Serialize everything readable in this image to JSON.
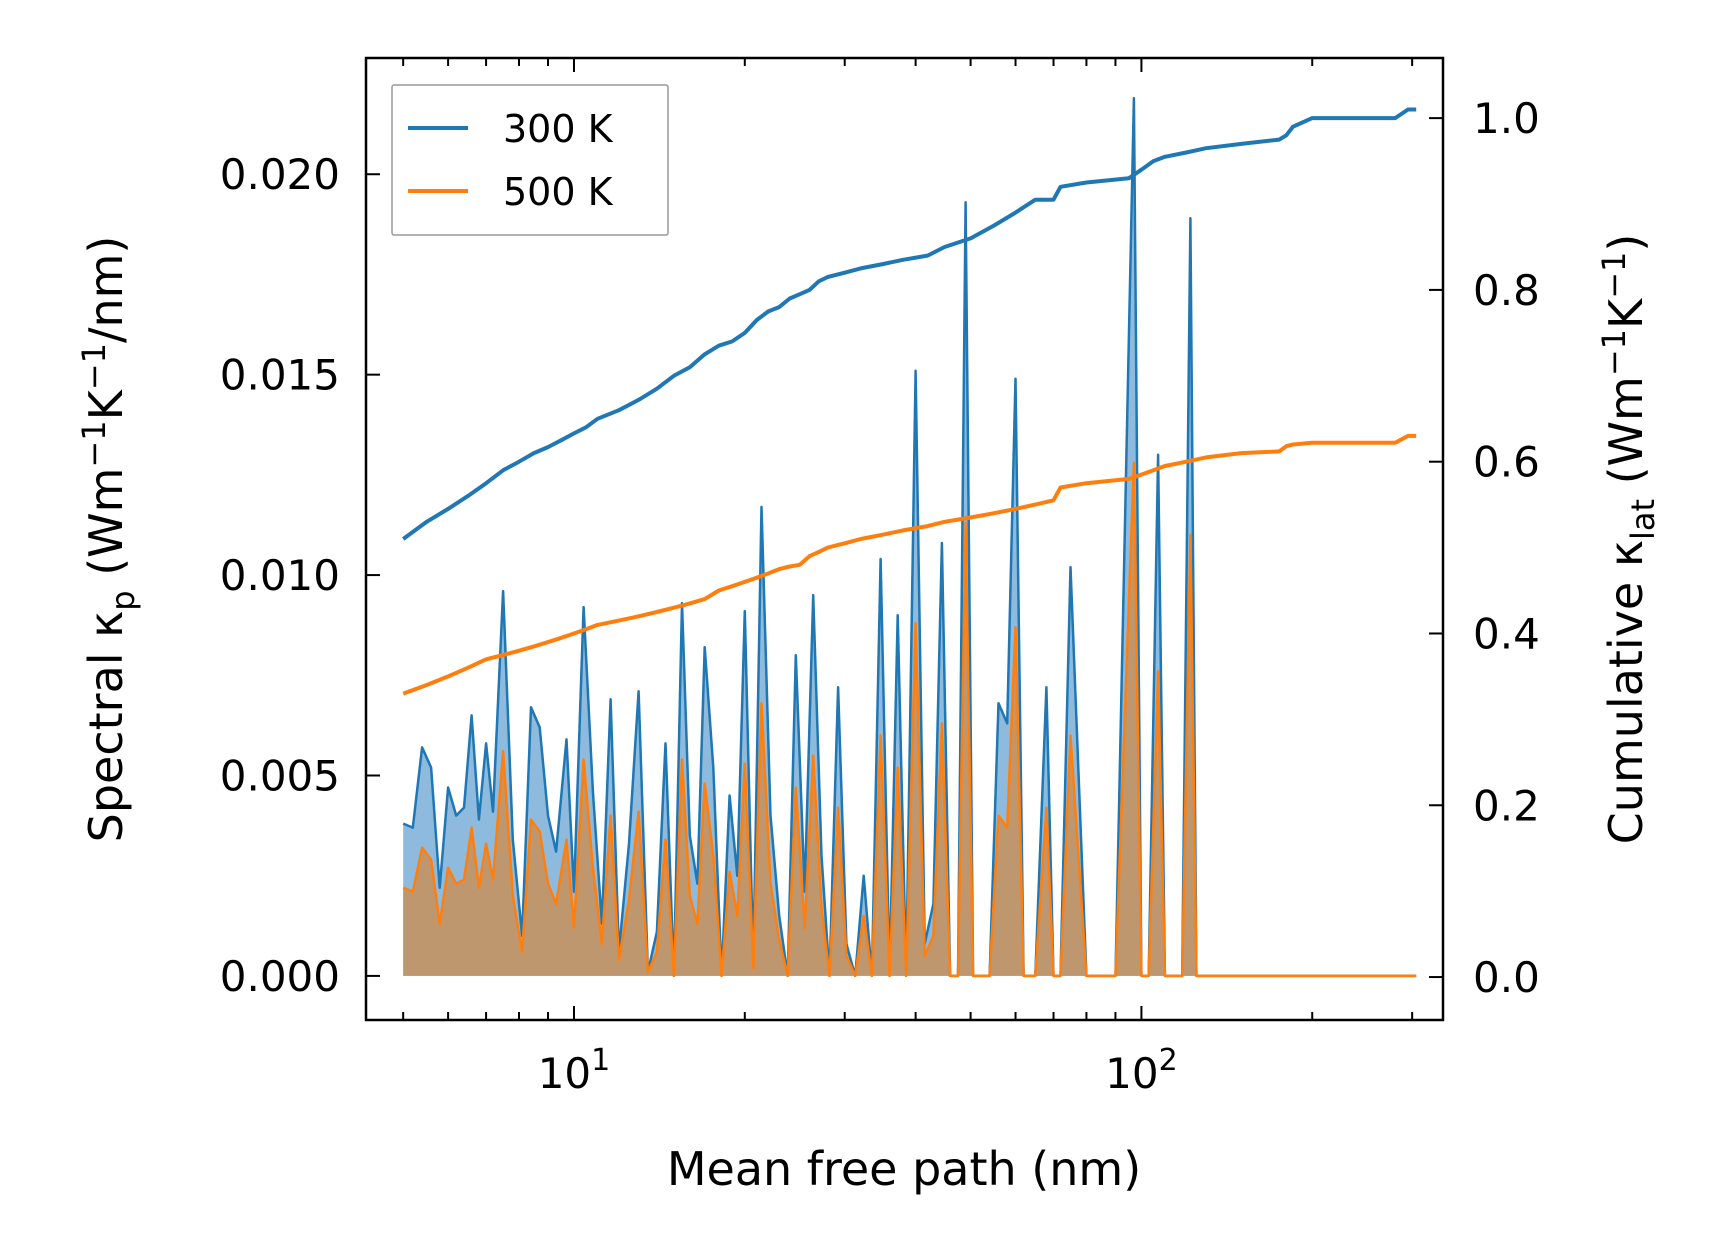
{
  "chart_data": {
    "type": "line",
    "x_scale": "log",
    "xlabel": "Mean free path (nm)",
    "ylabel_left": {
      "text": "Spectral κ",
      "sub": "p",
      "unit_pre": " (Wm",
      "sup1": "−1",
      "unit_mid": "K",
      "sup2": "−1",
      "unit_post": "/nm)"
    },
    "ylabel_right": {
      "text": "Cumulative κ",
      "sub": "lat",
      "unit_pre": " (Wm",
      "sup1": "−1",
      "unit_mid": "K",
      "sup2": "−1",
      "unit_post": ")"
    },
    "xlim": [
      4.3,
      340
    ],
    "ylim_left": [
      -0.0011,
      0.0229
    ],
    "ylim_right": [
      -0.05,
      1.07
    ],
    "x_ticks": [
      {
        "value": 10,
        "base": "10",
        "exp": "1"
      },
      {
        "value": 100,
        "base": "10",
        "exp": "2"
      }
    ],
    "y_ticks_left": [
      "0.000",
      "0.005",
      "0.010",
      "0.015",
      "0.020"
    ],
    "y_ticks_left_values": [
      0.0,
      0.005,
      0.01,
      0.015,
      0.02
    ],
    "y_ticks_right": [
      "0.0",
      "0.2",
      "0.4",
      "0.6",
      "0.8",
      "1.0"
    ],
    "y_ticks_right_values": [
      0.0,
      0.2,
      0.4,
      0.6,
      0.8,
      1.0
    ],
    "legend": {
      "position": "top-left",
      "entries": [
        {
          "label": "300 K",
          "color": "#1f77b4"
        },
        {
          "label": "500 K",
          "color": "#ff7f0e"
        }
      ]
    },
    "colors": {
      "blue": "#1f77b4",
      "orange": "#ff7f0e",
      "blue_fill": "#7aaed7",
      "orange_fill": "#c8905a"
    },
    "series": [
      {
        "name": "300 K spectral",
        "axis": "left",
        "kind": "filled-line",
        "x": [
          5.0,
          5.2,
          5.4,
          5.6,
          5.8,
          6.0,
          6.2,
          6.4,
          6.6,
          6.8,
          7.0,
          7.2,
          7.5,
          7.8,
          8.1,
          8.4,
          8.7,
          9.0,
          9.3,
          9.7,
          10.0,
          10.4,
          10.8,
          11.2,
          11.6,
          12.0,
          12.5,
          13.0,
          13.5,
          14.0,
          14.5,
          15.0,
          15.5,
          16.0,
          16.5,
          17.0,
          17.6,
          18.2,
          18.8,
          19.4,
          20.0,
          20.7,
          21.4,
          22.2,
          23.0,
          23.8,
          24.6,
          25.5,
          26.4,
          27.3,
          28.2,
          29.2,
          30.2,
          31.3,
          32.4,
          33.5,
          34.7,
          36.0,
          37.2,
          38.5,
          40.0,
          41.5,
          43.0,
          44.5,
          46.0,
          47.5,
          49.0,
          50.5,
          52.0,
          54.0,
          56.0,
          58.0,
          60.0,
          62.0,
          65.0,
          68.0,
          70.0,
          72.0,
          75.0,
          80.0,
          90.0,
          97.0,
          100.0,
          103.0,
          107.0,
          110.0,
          113.0,
          118.0,
          122.0,
          125.0,
          130.0,
          140.0,
          147.0,
          150.0,
          153.0,
          160.0,
          170.0,
          175.0,
          178.0,
          181.0,
          185.0,
          188.0,
          192.0,
          200.0,
          250.0,
          290.0,
          295.0,
          300.0,
          305.0
        ],
        "y": [
          0.0038,
          0.0037,
          0.0057,
          0.0052,
          0.0022,
          0.0047,
          0.004,
          0.0042,
          0.0065,
          0.0039,
          0.0058,
          0.0041,
          0.0096,
          0.0034,
          0.001,
          0.0067,
          0.0062,
          0.004,
          0.0031,
          0.0059,
          0.0021,
          0.0092,
          0.0046,
          0.0013,
          0.0069,
          0.0006,
          0.0033,
          0.0071,
          0.0001,
          0.0011,
          0.0058,
          0.0,
          0.0093,
          0.0035,
          0.0023,
          0.0082,
          0.0052,
          0.0,
          0.0045,
          0.0025,
          0.0091,
          0.0003,
          0.0117,
          0.004,
          0.0015,
          0.0,
          0.008,
          0.0021,
          0.0095,
          0.003,
          0.0,
          0.0072,
          0.0008,
          0.0,
          0.0025,
          0.0,
          0.0104,
          0.0,
          0.009,
          0.0,
          0.0151,
          0.0008,
          0.0018,
          0.0108,
          0.0,
          0.0,
          0.0193,
          0.0,
          0.0,
          0.0,
          0.0068,
          0.0063,
          0.0149,
          0.0,
          0.0,
          0.0072,
          0.0,
          0.0,
          0.0102,
          0.0,
          0.0,
          0.0219,
          0.0,
          0.0,
          0.013,
          0.0,
          0.0,
          0.0,
          0.0189,
          0.0,
          0.0,
          0.0,
          0.0,
          0.0,
          0.0,
          0.0,
          0.0,
          0.0,
          0.0,
          0.0,
          0.0,
          0.0,
          0.0,
          0.0,
          0.0,
          0.0,
          0.0,
          0.0,
          0.0
        ]
      },
      {
        "name": "500 K spectral",
        "axis": "left",
        "kind": "filled-line",
        "x": [
          5.0,
          5.2,
          5.4,
          5.6,
          5.8,
          6.0,
          6.2,
          6.4,
          6.6,
          6.8,
          7.0,
          7.2,
          7.5,
          7.8,
          8.1,
          8.4,
          8.7,
          9.0,
          9.3,
          9.7,
          10.0,
          10.4,
          10.8,
          11.2,
          11.6,
          12.0,
          12.5,
          13.0,
          13.5,
          14.0,
          14.5,
          15.0,
          15.5,
          16.0,
          16.5,
          17.0,
          17.6,
          18.2,
          18.8,
          19.4,
          20.0,
          20.7,
          21.4,
          22.2,
          23.0,
          23.8,
          24.6,
          25.5,
          26.4,
          27.3,
          28.2,
          29.2,
          30.2,
          31.3,
          32.4,
          33.5,
          34.7,
          36.0,
          37.2,
          38.5,
          40.0,
          41.5,
          43.0,
          44.5,
          46.0,
          47.5,
          49.0,
          50.5,
          52.0,
          54.0,
          56.0,
          58.0,
          60.0,
          62.0,
          65.0,
          68.0,
          70.0,
          72.0,
          75.0,
          80.0,
          90.0,
          97.0,
          100.0,
          103.0,
          107.0,
          110.0,
          113.0,
          118.0,
          122.0,
          125.0,
          130.0,
          140.0,
          147.0,
          150.0,
          153.0,
          160.0,
          170.0,
          175.0,
          178.0,
          181.0,
          185.0,
          188.0,
          192.0,
          200.0,
          250.0,
          290.0,
          295.0,
          300.0,
          305.0
        ],
        "y": [
          0.0022,
          0.0021,
          0.0032,
          0.0029,
          0.0013,
          0.0027,
          0.0023,
          0.0024,
          0.0037,
          0.0022,
          0.0033,
          0.0024,
          0.0056,
          0.002,
          0.0006,
          0.0039,
          0.0036,
          0.0023,
          0.0018,
          0.0034,
          0.0012,
          0.0054,
          0.0027,
          0.0008,
          0.004,
          0.0004,
          0.0019,
          0.0041,
          0.0001,
          0.0006,
          0.0034,
          0.0,
          0.0054,
          0.002,
          0.0013,
          0.0048,
          0.003,
          0.0,
          0.0026,
          0.0015,
          0.0053,
          0.0002,
          0.0068,
          0.0023,
          0.0009,
          0.0,
          0.0047,
          0.0012,
          0.0055,
          0.0017,
          0.0,
          0.0042,
          0.0005,
          0.0,
          0.0015,
          0.0,
          0.006,
          0.0,
          0.0052,
          0.0,
          0.0088,
          0.0005,
          0.001,
          0.0063,
          0.0,
          0.0,
          0.0113,
          0.0,
          0.0,
          0.0,
          0.004,
          0.0037,
          0.0087,
          0.0,
          0.0,
          0.0042,
          0.0,
          0.0,
          0.006,
          0.0,
          0.0,
          0.0128,
          0.0,
          0.0,
          0.0076,
          0.0,
          0.0,
          0.0,
          0.011,
          0.0,
          0.0,
          0.0,
          0.0,
          0.0,
          0.0,
          0.0,
          0.0,
          0.0,
          0.0,
          0.0,
          0.0,
          0.0,
          0.0,
          0.0,
          0.0,
          0.0,
          0.0,
          0.0,
          0.0
        ]
      },
      {
        "name": "300 K",
        "axis": "right",
        "kind": "line",
        "x": [
          5.0,
          5.5,
          6.0,
          6.5,
          7.0,
          7.5,
          8.0,
          8.5,
          9.0,
          9.5,
          10.0,
          10.5,
          11.0,
          12.0,
          13.0,
          14.0,
          15.0,
          16.0,
          17.0,
          18.0,
          19.0,
          20.0,
          21.0,
          22.0,
          23.0,
          24.0,
          25.0,
          26.0,
          27.0,
          28.0,
          30.0,
          32.0,
          35.0,
          38.0,
          42.0,
          45.0,
          50.0,
          55.0,
          60.0,
          65.0,
          70.0,
          72.0,
          80.0,
          95.0,
          100.0,
          105.0,
          110.0,
          120.0,
          130.0,
          150.0,
          175.0,
          180.0,
          185.0,
          200.0,
          280.0,
          295.0,
          305.0
        ],
        "y": [
          0.51,
          0.53,
          0.545,
          0.56,
          0.575,
          0.59,
          0.6,
          0.61,
          0.617,
          0.625,
          0.633,
          0.64,
          0.65,
          0.66,
          0.672,
          0.685,
          0.7,
          0.71,
          0.725,
          0.735,
          0.74,
          0.75,
          0.765,
          0.775,
          0.78,
          0.79,
          0.795,
          0.8,
          0.81,
          0.815,
          0.82,
          0.825,
          0.83,
          0.835,
          0.84,
          0.85,
          0.86,
          0.875,
          0.89,
          0.905,
          0.905,
          0.92,
          0.925,
          0.93,
          0.94,
          0.95,
          0.955,
          0.96,
          0.965,
          0.97,
          0.975,
          0.98,
          0.99,
          1.0,
          1.0,
          1.01,
          1.01
        ]
      },
      {
        "name": "500 K",
        "axis": "right",
        "kind": "line",
        "x": [
          5.0,
          5.5,
          6.0,
          6.5,
          7.0,
          7.5,
          8.0,
          8.5,
          9.0,
          9.5,
          10.0,
          10.5,
          11.0,
          12.0,
          13.0,
          14.0,
          15.0,
          16.0,
          17.0,
          18.0,
          19.0,
          20.0,
          21.0,
          22.0,
          23.0,
          24.0,
          25.0,
          26.0,
          27.0,
          28.0,
          30.0,
          32.0,
          35.0,
          38.0,
          42.0,
          45.0,
          50.0,
          55.0,
          60.0,
          65.0,
          70.0,
          72.0,
          80.0,
          95.0,
          100.0,
          105.0,
          110.0,
          120.0,
          130.0,
          150.0,
          175.0,
          180.0,
          185.0,
          200.0,
          280.0,
          295.0,
          305.0
        ],
        "y": [
          0.33,
          0.34,
          0.35,
          0.36,
          0.37,
          0.375,
          0.38,
          0.385,
          0.39,
          0.395,
          0.4,
          0.405,
          0.41,
          0.415,
          0.42,
          0.425,
          0.43,
          0.435,
          0.44,
          0.45,
          0.455,
          0.46,
          0.465,
          0.47,
          0.475,
          0.478,
          0.48,
          0.49,
          0.495,
          0.5,
          0.505,
          0.51,
          0.515,
          0.52,
          0.525,
          0.53,
          0.535,
          0.54,
          0.545,
          0.55,
          0.555,
          0.57,
          0.575,
          0.58,
          0.585,
          0.59,
          0.595,
          0.6,
          0.605,
          0.61,
          0.612,
          0.618,
          0.62,
          0.622,
          0.622,
          0.63,
          0.63
        ]
      }
    ]
  }
}
